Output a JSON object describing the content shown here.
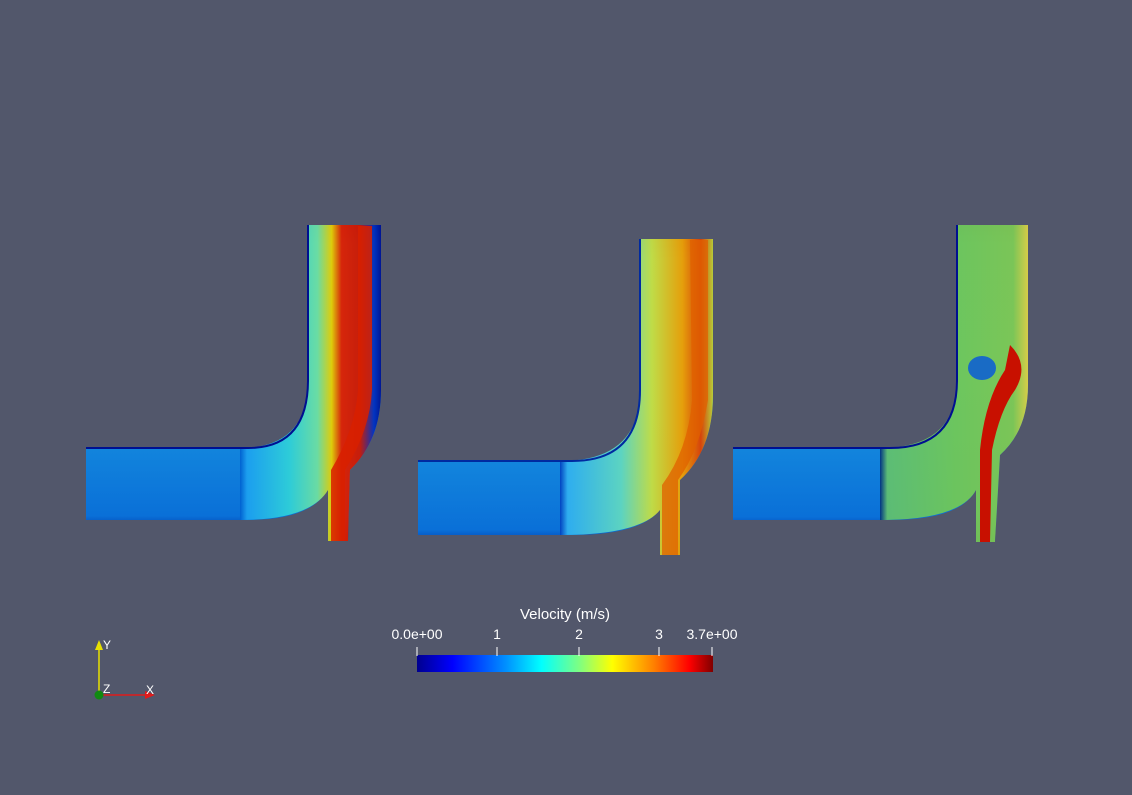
{
  "colorbar": {
    "title": "Velocity (m/s)",
    "range": [
      0,
      3.7
    ],
    "ticks": [
      {
        "value": 0,
        "label": "0.0e+00"
      },
      {
        "value": 1,
        "label": "1"
      },
      {
        "value": 2,
        "label": "2"
      },
      {
        "value": 3,
        "label": "3"
      },
      {
        "value": 3.7,
        "label": "3.7e+00"
      }
    ],
    "colormap": [
      "#00008f",
      "#0000ff",
      "#0080ff",
      "#00ffff",
      "#80ff80",
      "#ffff00",
      "#ff8000",
      "#ff0000",
      "#800000"
    ]
  },
  "axes_orientation": {
    "y_label": "Y",
    "z_label": "Z",
    "x_label": "X",
    "colors": {
      "x": "#e01b1b",
      "y": "#e8e000",
      "z": "#118a11"
    }
  },
  "background_color": "#52576b",
  "plots": [
    {
      "name": "velocity-field-1"
    },
    {
      "name": "velocity-field-2"
    },
    {
      "name": "velocity-field-3"
    }
  ]
}
